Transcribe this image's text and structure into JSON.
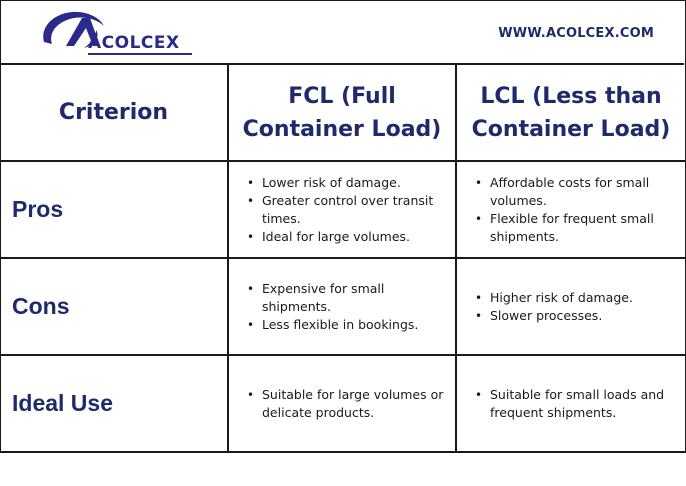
{
  "header": {
    "logo_text": "ACOLCEX",
    "website": "WWW.ACOLCEX.COM"
  },
  "colors": {
    "navy": "#1f2a6d",
    "logo_blue": "#2b2a8a"
  },
  "table": {
    "headers": [
      "Criterion",
      "FCL (Full Container Load)",
      "LCL (Less than Container Load)"
    ],
    "rows": [
      {
        "label": "Pros",
        "fcl": [
          "Lower risk of damage.",
          "Greater control over transit times.",
          "Ideal for large volumes."
        ],
        "lcl": [
          "Affordable costs for small volumes.",
          "Flexible for frequent small shipments."
        ]
      },
      {
        "label": "Cons",
        "fcl": [
          "Expensive for small shipments.",
          "Less flexible in bookings."
        ],
        "lcl": [
          "Higher risk of damage.",
          "Slower processes."
        ]
      },
      {
        "label": "Ideal Use",
        "fcl": [
          "Suitable for large volumes or delicate products."
        ],
        "lcl": [
          "Suitable for small loads and frequent shipments."
        ]
      }
    ]
  }
}
